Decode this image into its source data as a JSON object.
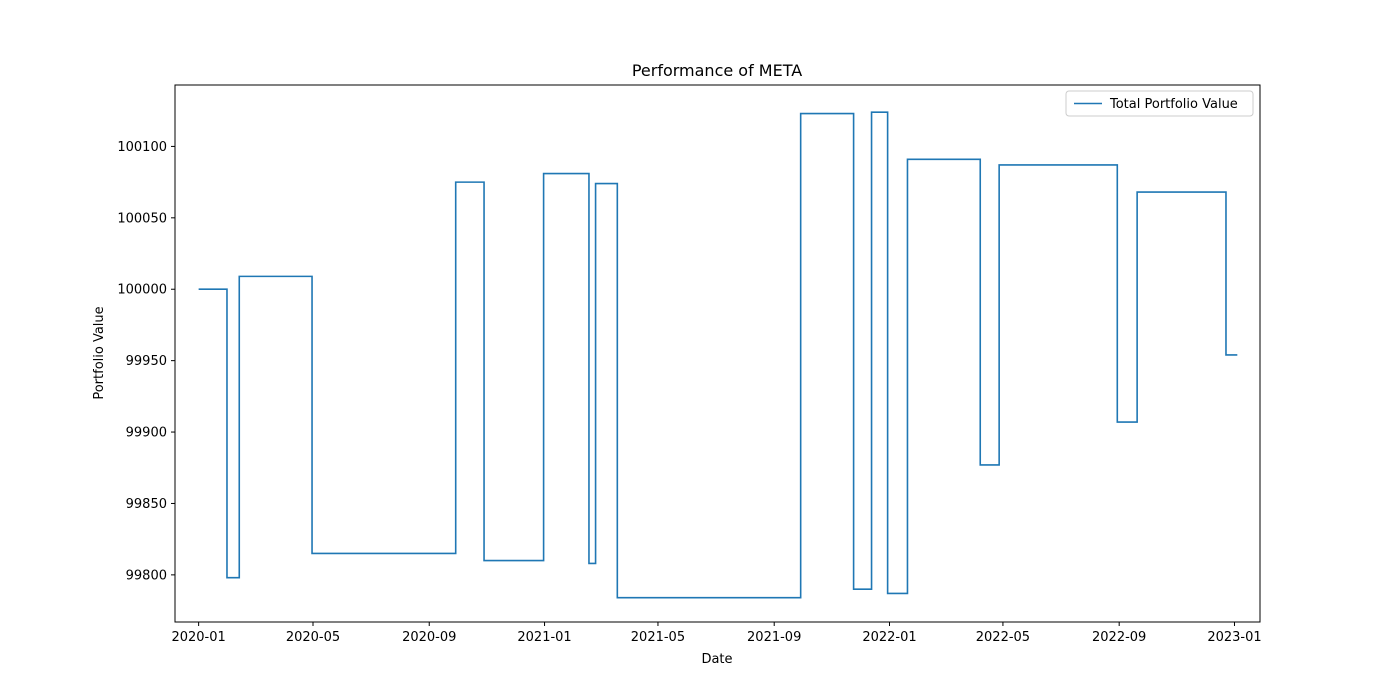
{
  "chart_data": {
    "type": "line",
    "title": "Performance of META",
    "xlabel": "Date",
    "ylabel": "Portfolio Value",
    "legend": "top-right",
    "grid": false,
    "xlim": [
      "2019-12-07",
      "2023-01-28"
    ],
    "ylim": [
      99767,
      100143
    ],
    "x_ticks": [
      "2020-01",
      "2020-05",
      "2020-09",
      "2021-01",
      "2021-05",
      "2021-09",
      "2022-01",
      "2022-05",
      "2022-09",
      "2023-01"
    ],
    "y_ticks": [
      99800,
      99850,
      99900,
      99950,
      100000,
      100050,
      100100
    ],
    "series": [
      {
        "name": "Total Portfolio Value",
        "color": "#1f77b4",
        "step": true,
        "points": [
          [
            "2020-01-01",
            100000
          ],
          [
            "2020-01-31",
            100000
          ],
          [
            "2020-01-31",
            99798
          ],
          [
            "2020-02-13",
            99798
          ],
          [
            "2020-02-13",
            100009
          ],
          [
            "2020-04-30",
            100009
          ],
          [
            "2020-04-30",
            99815
          ],
          [
            "2020-09-29",
            99815
          ],
          [
            "2020-09-29",
            100075
          ],
          [
            "2020-10-29",
            100075
          ],
          [
            "2020-10-29",
            99810
          ],
          [
            "2020-12-31",
            99810
          ],
          [
            "2020-12-31",
            100081
          ],
          [
            "2021-02-17",
            100081
          ],
          [
            "2021-02-17",
            99808
          ],
          [
            "2021-02-24",
            99808
          ],
          [
            "2021-02-24",
            100074
          ],
          [
            "2021-03-19",
            100074
          ],
          [
            "2021-03-19",
            99784
          ],
          [
            "2021-09-29",
            99784
          ],
          [
            "2021-09-29",
            100123
          ],
          [
            "2021-11-24",
            100123
          ],
          [
            "2021-11-24",
            99790
          ],
          [
            "2021-12-13",
            99790
          ],
          [
            "2021-12-13",
            100124
          ],
          [
            "2021-12-30",
            100124
          ],
          [
            "2021-12-30",
            99787
          ],
          [
            "2022-01-20",
            99787
          ],
          [
            "2022-01-20",
            100091
          ],
          [
            "2022-04-07",
            100091
          ],
          [
            "2022-04-07",
            99877
          ],
          [
            "2022-04-27",
            99877
          ],
          [
            "2022-04-27",
            100087
          ],
          [
            "2022-08-30",
            100087
          ],
          [
            "2022-08-30",
            99907
          ],
          [
            "2022-09-20",
            99907
          ],
          [
            "2022-09-20",
            100068
          ],
          [
            "2022-12-23",
            100068
          ],
          [
            "2022-12-23",
            99954
          ],
          [
            "2023-01-04",
            99954
          ]
        ]
      }
    ]
  }
}
